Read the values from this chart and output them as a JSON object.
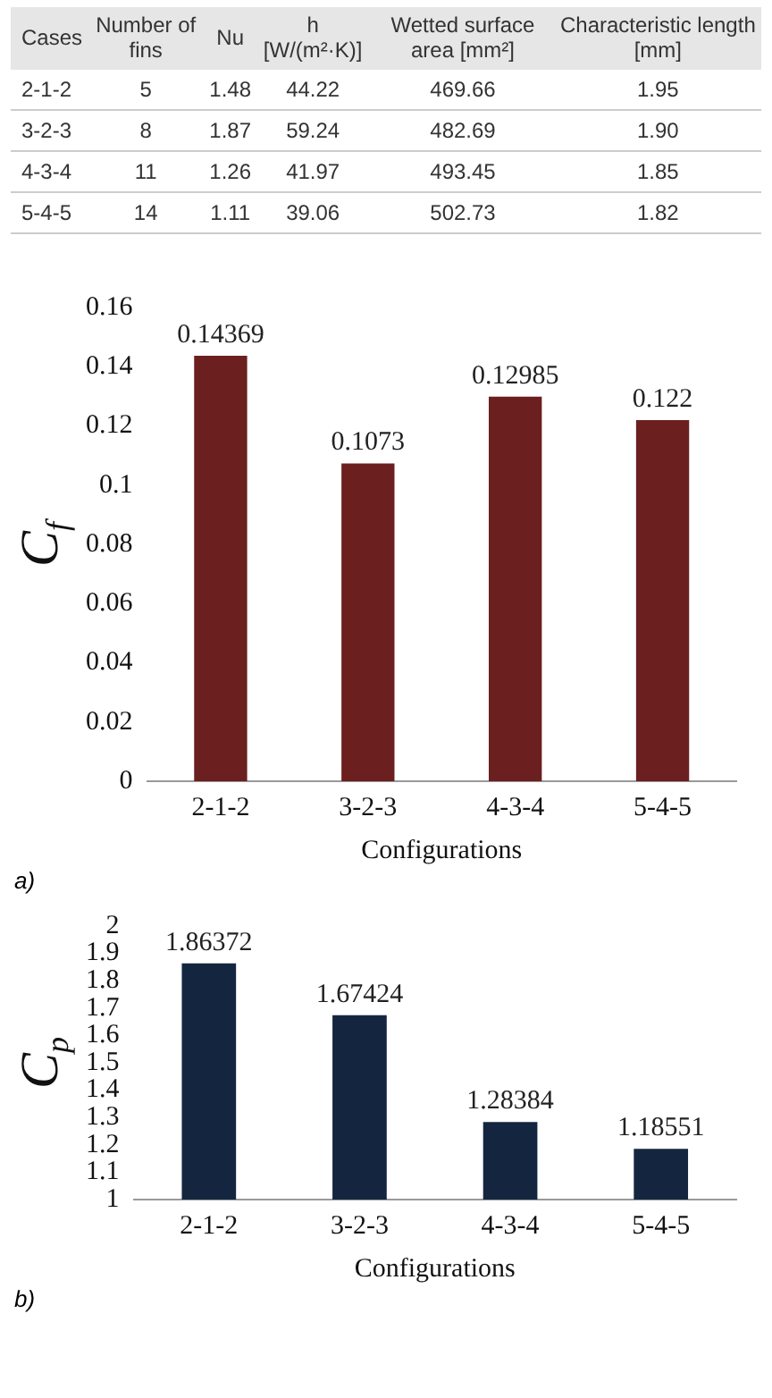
{
  "chart_data": [
    {
      "type": "heatmap",
      "ylabel": "Cases",
      "categories": [
        "Number of fins",
        "Nu",
        "h [W/(m²·K)]",
        "Wetted surface area [mm²]",
        "Characteristic length [mm]"
      ],
      "y_categories": [
        "2-1-2",
        "3-2-3",
        "4-3-4",
        "5-4-5"
      ],
      "cells": [
        [
          5,
          1.48,
          44.22,
          469.66,
          1.95
        ],
        [
          8,
          1.87,
          59.24,
          482.69,
          1.9
        ],
        [
          11,
          1.26,
          41.97,
          493.45,
          1.85
        ],
        [
          14,
          1.11,
          39.06,
          502.73,
          1.82
        ]
      ],
      "cell_labels": [
        [
          "5",
          "1.48",
          "44.22",
          "469.66",
          "1.95"
        ],
        [
          "8",
          "1.87",
          "59.24",
          "482.69",
          "1.90"
        ],
        [
          "11",
          "1.26",
          "41.97",
          "493.45",
          "1.85"
        ],
        [
          "14",
          "1.11",
          "39.06",
          "502.73",
          "1.82"
        ]
      ]
    },
    {
      "type": "bar",
      "categories": [
        "2-1-2",
        "3-2-3",
        "4-3-4",
        "5-4-5"
      ],
      "values": [
        0.14369,
        0.1073,
        0.12985,
        0.122
      ],
      "color": "#6b1f1f",
      "data_labels": true,
      "xlabel": "Configurations",
      "ylabel": "C$_{f}$",
      "ylim": [
        0,
        0.16
      ],
      "yticks": [
        0,
        0.02,
        0.04,
        0.06,
        0.08,
        0.1,
        0.12,
        0.14,
        0.16
      ],
      "grid": false,
      "legend": false,
      "annotations": [
        "a)"
      ]
    },
    {
      "type": "bar",
      "categories": [
        "2-1-2",
        "3-2-3",
        "4-3-4",
        "5-4-5"
      ],
      "values": [
        1.86372,
        1.67424,
        1.28384,
        1.18551
      ],
      "color": "#14263f",
      "data_labels": true,
      "xlabel": "Configurations",
      "ylabel": "C$_{p}$",
      "ylim": [
        1,
        2
      ],
      "yticks": [
        1,
        1.1,
        1.2,
        1.3,
        1.4,
        1.5,
        1.6,
        1.7,
        1.8,
        1.9,
        2
      ],
      "grid": false,
      "legend": false,
      "annotations": [
        "b)"
      ]
    }
  ]
}
